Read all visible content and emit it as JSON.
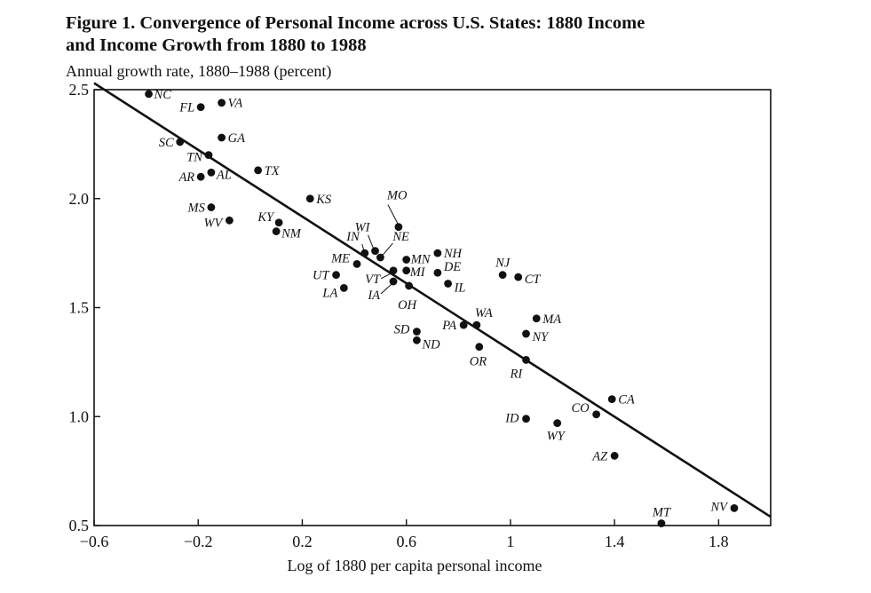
{
  "title": {
    "line1": "Figure 1.  Convergence of Personal Income across U.S. States: 1880 Income",
    "line2": "and Income Growth from 1880 to 1988"
  },
  "chart_data": {
    "type": "scatter",
    "title": "Figure 1.  Convergence of Personal Income across U.S. States: 1880 Income and Income Growth from 1880 to 1988",
    "ylabel": "Annual growth rate, 1880–1988 (percent)",
    "xlabel": "Log of 1880 per capita personal income",
    "xlim": [
      -0.6,
      2.0
    ],
    "ylim": [
      0.5,
      2.5
    ],
    "x_ticks": [
      {
        "value": -0.6,
        "label": "−0.6"
      },
      {
        "value": -0.2,
        "label": "−0.2"
      },
      {
        "value": 0.2,
        "label": "0.2"
      },
      {
        "value": 0.6,
        "label": "0.6"
      },
      {
        "value": 1.0,
        "label": "1"
      },
      {
        "value": 1.4,
        "label": "1.4"
      },
      {
        "value": 1.8,
        "label": "1.8"
      }
    ],
    "y_ticks": [
      {
        "value": 0.5,
        "label": "0.5"
      },
      {
        "value": 1.0,
        "label": "1.0"
      },
      {
        "value": 1.5,
        "label": "1.5"
      },
      {
        "value": 2.0,
        "label": "2.0"
      },
      {
        "value": 2.5,
        "label": "2.5"
      }
    ],
    "regression_line": {
      "x1": -0.6,
      "y1": 2.53,
      "x2": 2.0,
      "y2": 0.54
    },
    "points": [
      {
        "label": "NC",
        "x": -0.39,
        "y": 2.48
      },
      {
        "label": "FL",
        "x": -0.19,
        "y": 2.42
      },
      {
        "label": "VA",
        "x": -0.11,
        "y": 2.44
      },
      {
        "label": "SC",
        "x": -0.27,
        "y": 2.26
      },
      {
        "label": "GA",
        "x": -0.11,
        "y": 2.28
      },
      {
        "label": "TN",
        "x": -0.16,
        "y": 2.2
      },
      {
        "label": "TX",
        "x": 0.03,
        "y": 2.13
      },
      {
        "label": "AR",
        "x": -0.19,
        "y": 2.1
      },
      {
        "label": "AL",
        "x": -0.15,
        "y": 2.12
      },
      {
        "label": "KS",
        "x": 0.23,
        "y": 2.0
      },
      {
        "label": "MS",
        "x": -0.15,
        "y": 1.96
      },
      {
        "label": "WV",
        "x": -0.08,
        "y": 1.9
      },
      {
        "label": "KY",
        "x": 0.11,
        "y": 1.89
      },
      {
        "label": "NM",
        "x": 0.1,
        "y": 1.85
      },
      {
        "label": "MO",
        "x": 0.57,
        "y": 1.87
      },
      {
        "label": "WI",
        "x": 0.48,
        "y": 1.76
      },
      {
        "label": "IN",
        "x": 0.44,
        "y": 1.75
      },
      {
        "label": "NE",
        "x": 0.5,
        "y": 1.73
      },
      {
        "label": "ME",
        "x": 0.41,
        "y": 1.7
      },
      {
        "label": "MN",
        "x": 0.6,
        "y": 1.72
      },
      {
        "label": "NH",
        "x": 0.72,
        "y": 1.75
      },
      {
        "label": "DE",
        "x": 0.72,
        "y": 1.66
      },
      {
        "label": "MI",
        "x": 0.6,
        "y": 1.67
      },
      {
        "label": "VT",
        "x": 0.55,
        "y": 1.67
      },
      {
        "label": "IA",
        "x": 0.55,
        "y": 1.62
      },
      {
        "label": "UT",
        "x": 0.33,
        "y": 1.65
      },
      {
        "label": "LA",
        "x": 0.36,
        "y": 1.59
      },
      {
        "label": "OH",
        "x": 0.61,
        "y": 1.6
      },
      {
        "label": "IL",
        "x": 0.76,
        "y": 1.61
      },
      {
        "label": "NJ",
        "x": 0.97,
        "y": 1.65
      },
      {
        "label": "CT",
        "x": 1.03,
        "y": 1.64
      },
      {
        "label": "WA",
        "x": 0.87,
        "y": 1.42
      },
      {
        "label": "PA",
        "x": 0.82,
        "y": 1.42
      },
      {
        "label": "MA",
        "x": 1.1,
        "y": 1.45
      },
      {
        "label": "NY",
        "x": 1.06,
        "y": 1.38
      },
      {
        "label": "SD",
        "x": 0.64,
        "y": 1.39
      },
      {
        "label": "ND",
        "x": 0.64,
        "y": 1.35
      },
      {
        "label": "OR",
        "x": 0.88,
        "y": 1.32
      },
      {
        "label": "RI",
        "x": 1.06,
        "y": 1.26
      },
      {
        "label": "CA",
        "x": 1.39,
        "y": 1.08
      },
      {
        "label": "CO",
        "x": 1.33,
        "y": 1.01
      },
      {
        "label": "ID",
        "x": 1.06,
        "y": 0.99
      },
      {
        "label": "WY",
        "x": 1.18,
        "y": 0.97
      },
      {
        "label": "AZ",
        "x": 1.4,
        "y": 0.82
      },
      {
        "label": "NV",
        "x": 1.86,
        "y": 0.58
      },
      {
        "label": "MT",
        "x": 1.58,
        "y": 0.51
      }
    ]
  }
}
